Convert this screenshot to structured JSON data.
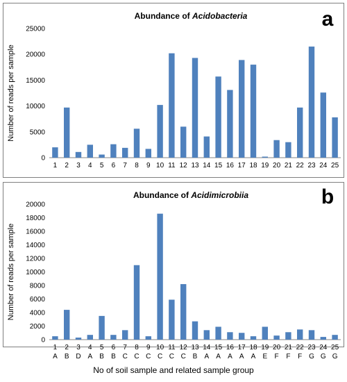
{
  "chart_data": [
    {
      "type": "bar",
      "panel_letter": "a",
      "title_prefix": "Abundance of ",
      "title_italic": "Acidobacteria",
      "ylabel": "Number of reads per sample",
      "ylim": [
        0,
        25000
      ],
      "yticks": [
        0,
        5000,
        10000,
        15000,
        20000,
        25000
      ],
      "categories": [
        "1",
        "2",
        "3",
        "4",
        "5",
        "6",
        "7",
        "8",
        "9",
        "10",
        "11",
        "12",
        "13",
        "14",
        "15",
        "16",
        "17",
        "18",
        "19",
        "20",
        "21",
        "22",
        "23",
        "24",
        "25"
      ],
      "values": [
        2000,
        9700,
        1100,
        2500,
        600,
        2600,
        1900,
        5600,
        1700,
        10200,
        20200,
        6000,
        19300,
        4100,
        15700,
        13100,
        18900,
        18000,
        200,
        3400,
        3000,
        9700,
        21500,
        12600,
        7800
      ],
      "grid": false,
      "legend": "none",
      "color": "#4f81bd"
    },
    {
      "type": "bar",
      "panel_letter": "b",
      "title_prefix": "Abundance of ",
      "title_italic": "Acidimicrobiia",
      "ylabel": "Number of reads per sample",
      "ylim": [
        0,
        20000
      ],
      "yticks": [
        0,
        2000,
        4000,
        6000,
        8000,
        10000,
        12000,
        14000,
        16000,
        18000,
        20000
      ],
      "categories": [
        "1",
        "2",
        "3",
        "4",
        "5",
        "6",
        "7",
        "8",
        "9",
        "10",
        "11",
        "12",
        "13",
        "14",
        "15",
        "16",
        "17",
        "18",
        "19",
        "20",
        "21",
        "22",
        "23",
        "24",
        "25"
      ],
      "groups": [
        "A",
        "B",
        "D",
        "A",
        "B",
        "B",
        "C",
        "C",
        "C",
        "C",
        "C",
        "C",
        "B",
        "A",
        "A",
        "A",
        "A",
        "A",
        "E",
        "F",
        "F",
        "F",
        "G",
        "G",
        "G"
      ],
      "values": [
        500,
        4400,
        300,
        700,
        3500,
        700,
        1400,
        11000,
        500,
        18600,
        5900,
        8200,
        2700,
        1400,
        1900,
        1100,
        1000,
        500,
        1900,
        600,
        1100,
        1500,
        1400,
        400,
        700
      ],
      "grid": false,
      "legend": "none",
      "color": "#4f81bd"
    }
  ],
  "shared_xlabel": "No of soil sample and related sample group"
}
